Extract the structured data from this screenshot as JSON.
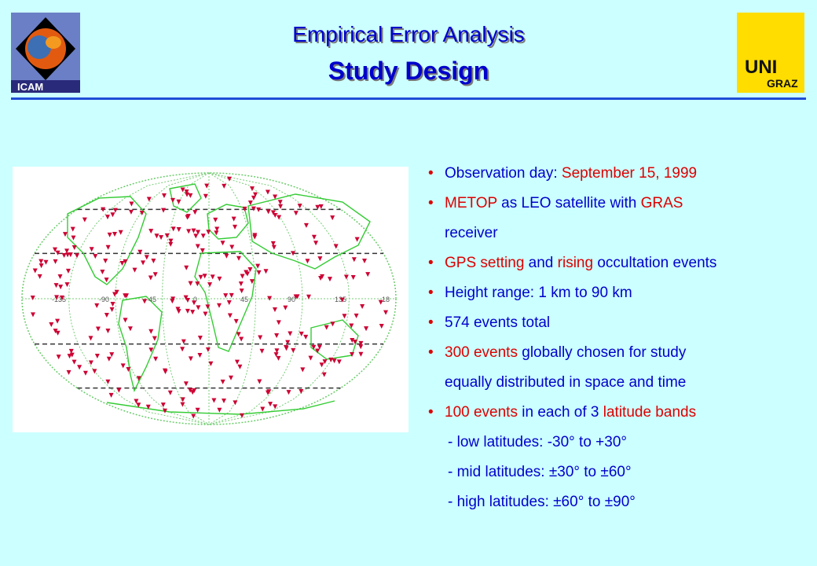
{
  "header": {
    "title": "Empirical Error Analysis",
    "subtitle": "Study Design",
    "logo_left_text": "ICAM",
    "logo_right_text_1": "UNI",
    "logo_right_text_2": "GRAZ"
  },
  "map": {
    "description_icon": "world-map-with-occultation-events",
    "longitude_labels": [
      "-135",
      "-90",
      "-45",
      "0",
      "45",
      "90",
      "135",
      "18"
    ]
  },
  "bullets": [
    {
      "segments": [
        {
          "text": "Observation day:  ",
          "color": "blue"
        },
        {
          "text": "September 15, 1999",
          "color": "red"
        }
      ]
    },
    {
      "segments": [
        {
          "text": "METOP",
          "color": "red"
        },
        {
          "text": " as LEO satellite with ",
          "color": "blue"
        },
        {
          "text": "GRAS",
          "color": "red"
        }
      ]
    },
    {
      "continuation": "receiver"
    },
    {
      "segments": [
        {
          "text": "GPS setting",
          "color": "red"
        },
        {
          "text": " and ",
          "color": "blue"
        },
        {
          "text": "rising",
          "color": "red"
        },
        {
          "text": " occultation events",
          "color": "blue"
        }
      ]
    },
    {
      "segments": [
        {
          "text": "Height range: 1 km to 90 km",
          "color": "blue"
        }
      ]
    },
    {
      "segments": [
        {
          "text": "574 events total",
          "color": "blue"
        }
      ]
    },
    {
      "segments": [
        {
          "text": "300 events",
          "color": "red"
        },
        {
          "text": " globally chosen for study",
          "color": "blue"
        }
      ]
    },
    {
      "continuation": "equally distributed in space and time"
    },
    {
      "segments": [
        {
          "text": "100 events",
          "color": "red"
        },
        {
          "text": " in each of 3 ",
          "color": "blue"
        },
        {
          "text": "latitude bands",
          "color": "red"
        }
      ]
    },
    {
      "sub": "- low latitudes:   -30° to +30°"
    },
    {
      "sub": "- mid latitudes:  ±30° to ±60°"
    },
    {
      "sub": "- high latitudes: ±60° to ±90°"
    }
  ],
  "colors": {
    "title": "#0000cc",
    "accent": "#dd0000",
    "background": "#ccffff",
    "map_continent": "#33cc33",
    "map_event": "#cc0033"
  }
}
